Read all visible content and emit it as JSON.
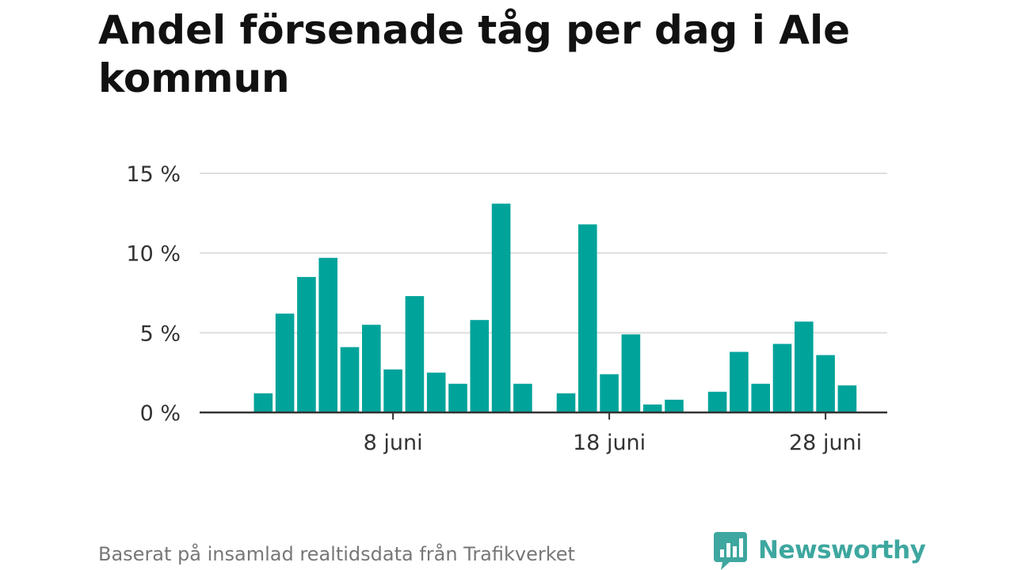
{
  "title": "Andel försenade tåg per dag i Ale kommun",
  "footer": {
    "source": "Baserat på insamlad realtidsdata från Trafikverket",
    "brand": "Newsworthy"
  },
  "colors": {
    "bar": "#00a39a",
    "brand": "#3ea79f",
    "grid": "#dddddd",
    "axis": "#333333"
  },
  "chart_data": {
    "type": "bar",
    "x": [
      "2 juni",
      "3 juni",
      "4 juni",
      "5 juni",
      "6 juni",
      "7 juni",
      "8 juni",
      "9 juni",
      "10 juni",
      "11 juni",
      "12 juni",
      "13 juni",
      "14 juni",
      "15 juni",
      "16 juni",
      "17 juni",
      "18 juni",
      "19 juni",
      "20 juni",
      "21 juni",
      "22 juni",
      "23 juni",
      "24 juni",
      "25 juni",
      "26 juni",
      "27 juni",
      "28 juni",
      "29 juni",
      "30 juni"
    ],
    "values": [
      1.2,
      6.2,
      8.5,
      9.7,
      4.1,
      5.5,
      2.7,
      7.3,
      2.5,
      1.8,
      5.8,
      13.1,
      1.8,
      0,
      1.2,
      11.8,
      2.4,
      4.9,
      0.5,
      0.8,
      0,
      1.3,
      3.8,
      1.8,
      4.3,
      5.7,
      3.6,
      1.7,
      0
    ],
    "ylim": [
      0,
      15
    ],
    "yticks": [
      0,
      5,
      10,
      15
    ],
    "ytick_labels": [
      "0 %",
      "5 %",
      "10 %",
      "15 %"
    ],
    "xticks": [
      "8 juni",
      "18 juni",
      "28 juni"
    ],
    "grid": true
  }
}
